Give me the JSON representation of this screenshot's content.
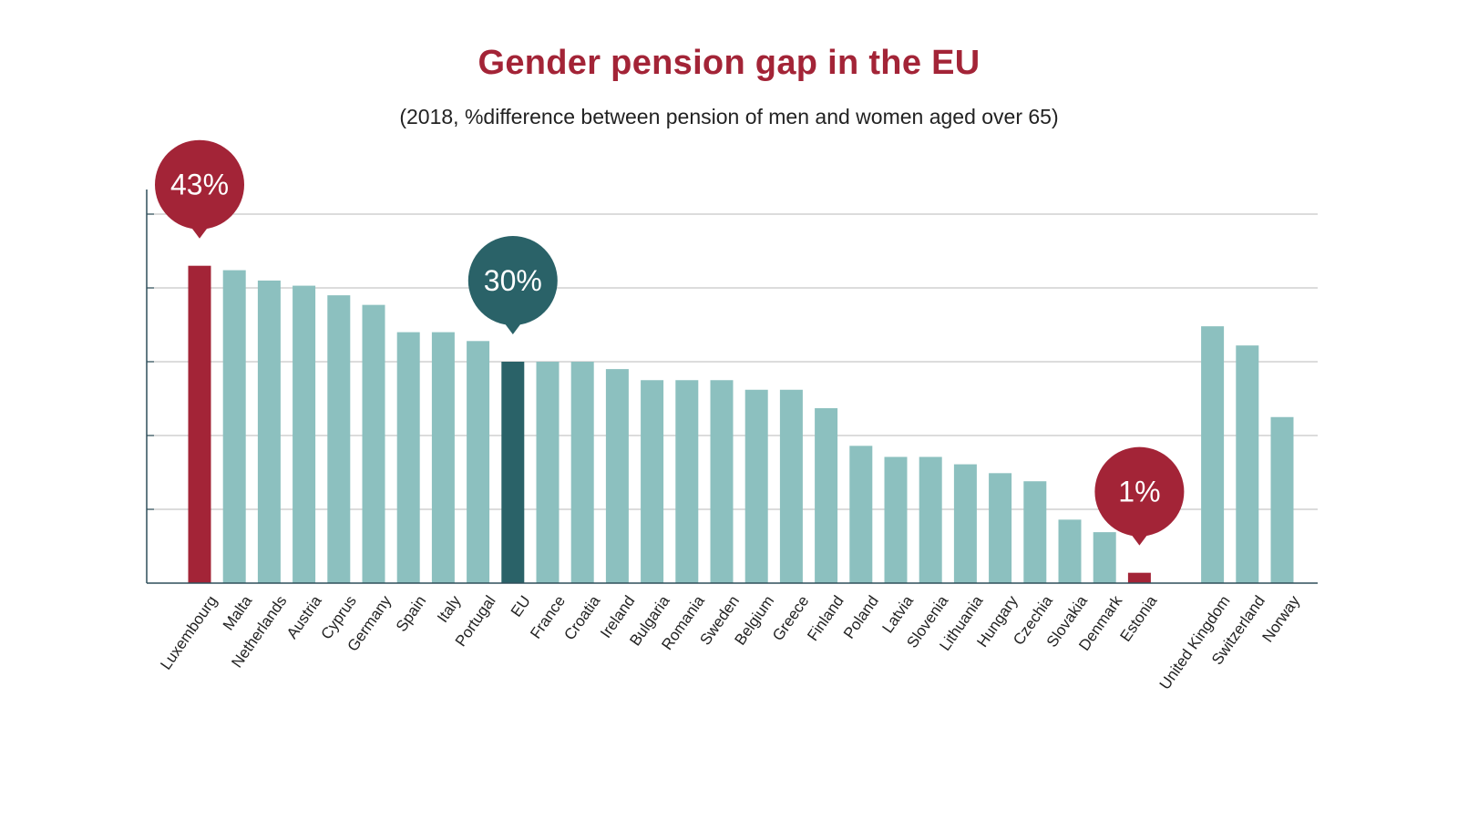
{
  "chart_data": {
    "type": "bar",
    "title": "Gender pension gap in the EU",
    "subtitle": "(2018, %difference between pension of men and women aged over 65)",
    "xlabel": "",
    "ylabel": "",
    "ylim": [
      0,
      50
    ],
    "grid": true,
    "categories": [
      "Luxembourg",
      "Malta",
      "Netherlands",
      "Austria",
      "Cyprus",
      "Germany",
      "Spain",
      "Italy",
      "Portugal",
      "EU",
      "France",
      "Croatia",
      "Ireland",
      "Bulgaria",
      "Romania",
      "Sweden",
      "Belgium",
      "Greece",
      "Finland",
      "Poland",
      "Latvia",
      "Slovenia",
      "Lithuania",
      "Hungary",
      "Czechia",
      "Slovakia",
      "Denmark",
      "Estonia",
      "United Kingdom",
      "Switzerland",
      "Norway"
    ],
    "values": [
      43,
      42.4,
      41,
      40.3,
      39,
      37.7,
      34,
      34,
      32.8,
      30,
      30,
      30,
      29,
      27.5,
      27.5,
      27.5,
      26.2,
      26.2,
      23.7,
      18.6,
      17.1,
      17.1,
      16.1,
      14.9,
      13.8,
      8.6,
      6.9,
      1.4,
      34.8,
      32.2,
      22.5
    ],
    "colors": {
      "default": "#8cc0bf",
      "highlight_red": "#a32437",
      "highlight_teal": "#2a6268",
      "grid": "#c8c8c8",
      "axis": "#2f4f5a"
    },
    "highlights": [
      {
        "category": "Luxembourg",
        "color": "#a32437"
      },
      {
        "category": "EU",
        "color": "#2a6268"
      },
      {
        "category": "Estonia",
        "color": "#a32437"
      }
    ],
    "annotations": [
      {
        "category": "Luxembourg",
        "text": "43%",
        "color": "#a32437"
      },
      {
        "category": "EU",
        "text": "30%",
        "color": "#2a6268"
      },
      {
        "category": "Estonia",
        "text": "1%",
        "color": "#a32437"
      }
    ],
    "gap_before": [
      "United Kingdom"
    ]
  }
}
